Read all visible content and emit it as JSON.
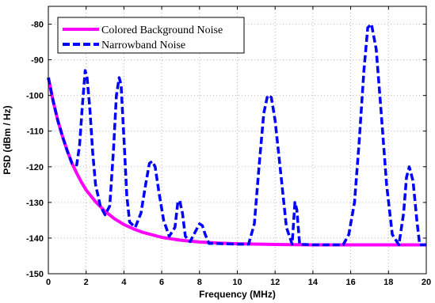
{
  "chart_data": {
    "type": "line",
    "xlabel": "Frequency (MHz)",
    "ylabel": "PSD (dBm / Hz)",
    "xlim": [
      0,
      20
    ],
    "ylim": [
      -150,
      -75
    ],
    "x_ticks": [
      0,
      2,
      4,
      6,
      8,
      10,
      12,
      14,
      16,
      18,
      20
    ],
    "y_ticks": [
      -150,
      -140,
      -130,
      -120,
      -110,
      -100,
      -90,
      -80
    ],
    "grid": true,
    "legend_position": "top-left",
    "series": [
      {
        "name": "Colored Background Noise",
        "color": "#ff00ff",
        "style": "solid",
        "x": [
          0,
          0.25,
          0.5,
          0.75,
          1,
          1.25,
          1.5,
          1.75,
          2,
          2.5,
          3,
          3.5,
          4,
          4.5,
          5,
          6,
          7,
          8,
          9,
          10,
          12,
          14,
          16,
          18,
          20
        ],
        "y": [
          -95,
          -101.5,
          -107,
          -111.5,
          -115.5,
          -119,
          -121.8,
          -124.3,
          -126.5,
          -129.8,
          -132.5,
          -134.6,
          -136.2,
          -137.4,
          -138.4,
          -139.8,
          -140.6,
          -141.1,
          -141.4,
          -141.6,
          -141.8,
          -141.9,
          -141.9,
          -141.9,
          -141.9
        ]
      },
      {
        "name": "Narrowband Noise",
        "color": "#0000ff",
        "style": "dashed",
        "x": [
          0,
          0.25,
          0.5,
          0.75,
          1,
          1.25,
          1.5,
          1.65,
          1.8,
          1.95,
          2.05,
          2.2,
          2.35,
          2.5,
          2.75,
          3,
          3.25,
          3.45,
          3.6,
          3.75,
          3.85,
          4.0,
          4.15,
          4.3,
          4.6,
          4.9,
          5.15,
          5.35,
          5.5,
          5.65,
          5.85,
          6.1,
          6.4,
          6.7,
          6.85,
          6.95,
          7.1,
          7.25,
          7.5,
          7.8,
          8.0,
          8.15,
          8.3,
          8.5,
          8.8,
          9.2,
          10,
          10.6,
          10.9,
          11.15,
          11.4,
          11.6,
          11.8,
          12.0,
          12.3,
          12.6,
          12.9,
          13.05,
          13.15,
          13.3,
          13.6,
          14,
          15,
          15.6,
          15.9,
          16.2,
          16.45,
          16.7,
          16.9,
          17.1,
          17.35,
          17.6,
          17.9,
          18.2,
          18.55,
          18.8,
          18.95,
          19.1,
          19.3,
          19.5,
          19.65,
          19.8,
          20
        ],
        "y": [
          -95,
          -101.5,
          -107,
          -111.5,
          -115.5,
          -119,
          -119.5,
          -114,
          -103,
          -93,
          -95,
          -104,
          -116,
          -125,
          -131,
          -133.5,
          -131,
          -115,
          -100,
          -95,
          -97,
          -112,
          -128,
          -135.5,
          -137,
          -133,
          -125,
          -119,
          -118.5,
          -120,
          -127,
          -135,
          -139.5,
          -137,
          -130,
          -129.5,
          -133,
          -139.5,
          -141,
          -138,
          -136,
          -136.5,
          -139,
          -141.5,
          -141.5,
          -141.6,
          -141.7,
          -141.7,
          -136,
          -120,
          -105,
          -100,
          -100.5,
          -107,
          -122,
          -137,
          -141.7,
          -130,
          -132,
          -141.8,
          -141.8,
          -141.9,
          -141.9,
          -141.9,
          -139,
          -130,
          -113,
          -93,
          -81,
          -80,
          -87,
          -104,
          -125,
          -139,
          -141.9,
          -133,
          -123,
          -120,
          -124,
          -135,
          -141.9,
          -141.9,
          -141.9
        ]
      }
    ]
  }
}
